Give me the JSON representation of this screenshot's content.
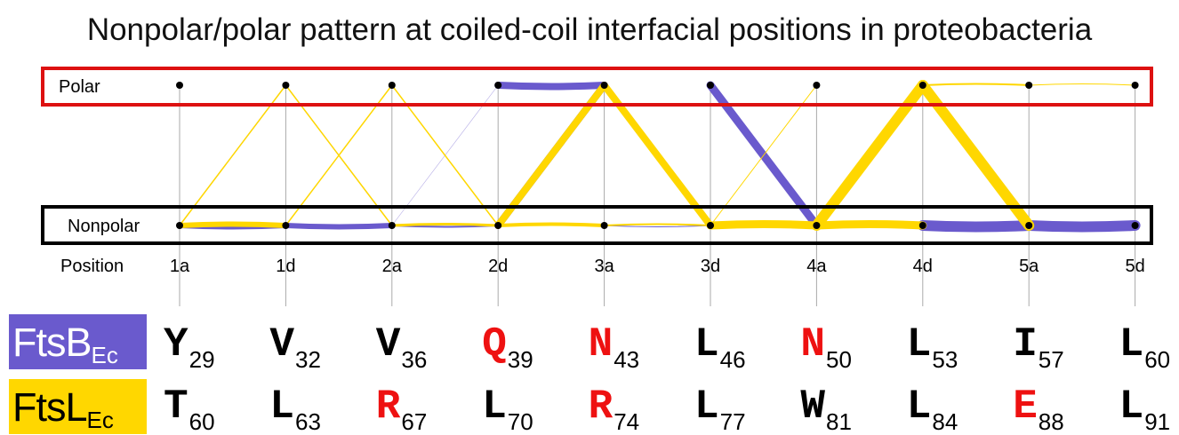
{
  "title": "Nonpolar/polar pattern at coiled-coil interfacial positions in proteobacteria",
  "rows": {
    "polar": "Polar",
    "nonpolar": "Nonpolar",
    "position_header": "Position"
  },
  "positions": [
    "1a",
    "1d",
    "2a",
    "2d",
    "3a",
    "3d",
    "4a",
    "4d",
    "5a",
    "5d"
  ],
  "colors": {
    "ftsb": "#6A5ACD",
    "ftsl": "#FFD700",
    "polar_box": "#DD1111",
    "nonpolar_box": "#000000",
    "polar_residue": "#EE1111",
    "nonpolar_residue": "#000000"
  },
  "proteins": [
    {
      "name": "FtsB",
      "subscript": "Ec",
      "residues": [
        {
          "aa": "Y",
          "num": "29",
          "polar": false
        },
        {
          "aa": "V",
          "num": "32",
          "polar": false
        },
        {
          "aa": "V",
          "num": "36",
          "polar": false
        },
        {
          "aa": "Q",
          "num": "39",
          "polar": true
        },
        {
          "aa": "N",
          "num": "43",
          "polar": true
        },
        {
          "aa": "L",
          "num": "46",
          "polar": false
        },
        {
          "aa": "N",
          "num": "50",
          "polar": true
        },
        {
          "aa": "L",
          "num": "53",
          "polar": false
        },
        {
          "aa": "I",
          "num": "57",
          "polar": false
        },
        {
          "aa": "L",
          "num": "60",
          "polar": false
        }
      ]
    },
    {
      "name": "FtsL",
      "subscript": "Ec",
      "residues": [
        {
          "aa": "T",
          "num": "60",
          "polar": false
        },
        {
          "aa": "L",
          "num": "63",
          "polar": false
        },
        {
          "aa": "R",
          "num": "67",
          "polar": true
        },
        {
          "aa": "L",
          "num": "70",
          "polar": false
        },
        {
          "aa": "R",
          "num": "74",
          "polar": true
        },
        {
          "aa": "L",
          "num": "77",
          "polar": false
        },
        {
          "aa": "W",
          "num": "81",
          "polar": false
        },
        {
          "aa": "L",
          "num": "84",
          "polar": false
        },
        {
          "aa": "E",
          "num": "88",
          "polar": true
        },
        {
          "aa": "L",
          "num": "91",
          "polar": false
        }
      ]
    }
  ],
  "transitions": {
    "FtsB": [
      {
        "from": "N",
        "to": "N",
        "weight": 6
      },
      {
        "from": "N",
        "to": "P",
        "weight": 1
      },
      {
        "from": "P",
        "to": "N",
        "weight": 1
      },
      {
        "from": "N",
        "to": "N",
        "weight": 6
      },
      {
        "from": "N",
        "to": "P",
        "weight": 0.5
      },
      {
        "from": "N",
        "to": "N",
        "weight": 2
      },
      {
        "from": "N",
        "to": "P",
        "weight": 8
      },
      {
        "from": "P",
        "to": "P",
        "weight": 8
      },
      {
        "from": "P",
        "to": "N",
        "weight": 2
      },
      {
        "from": "N",
        "to": "N",
        "weight": 1
      },
      {
        "from": "P",
        "to": "N",
        "weight": 9
      },
      {
        "from": "N",
        "to": "N",
        "weight": 1
      },
      {
        "from": "N",
        "to": "P",
        "weight": 9
      },
      {
        "from": "N",
        "to": "P",
        "weight": 0.5
      },
      {
        "from": "P",
        "to": "N",
        "weight": 9
      },
      {
        "from": "N",
        "to": "N",
        "weight": 12
      },
      {
        "from": "N",
        "to": "N",
        "weight": 12
      }
    ],
    "FtsL": [
      {
        "from": "N",
        "to": "N",
        "weight": 6
      },
      {
        "from": "N",
        "to": "P",
        "weight": 1.5
      },
      {
        "from": "P",
        "to": "N",
        "weight": 1.5
      },
      {
        "from": "N",
        "to": "P",
        "weight": 1.5
      },
      {
        "from": "N",
        "to": "N",
        "weight": 3
      },
      {
        "from": "P",
        "to": "N",
        "weight": 1.5
      },
      {
        "from": "N",
        "to": "N",
        "weight": 4
      },
      {
        "from": "N",
        "to": "P",
        "weight": 8
      },
      {
        "from": "P",
        "to": "N",
        "weight": 8
      },
      {
        "from": "N",
        "to": "N",
        "weight": 2
      },
      {
        "from": "N",
        "to": "N",
        "weight": 9
      },
      {
        "from": "N",
        "to": "P",
        "weight": 1
      },
      {
        "from": "N",
        "to": "N",
        "weight": 9
      },
      {
        "from": "N",
        "to": "P",
        "weight": 12
      },
      {
        "from": "P",
        "to": "N",
        "weight": 12
      },
      {
        "from": "P",
        "to": "P",
        "weight": 2
      },
      {
        "from": "P",
        "to": "P",
        "weight": 1
      }
    ]
  }
}
